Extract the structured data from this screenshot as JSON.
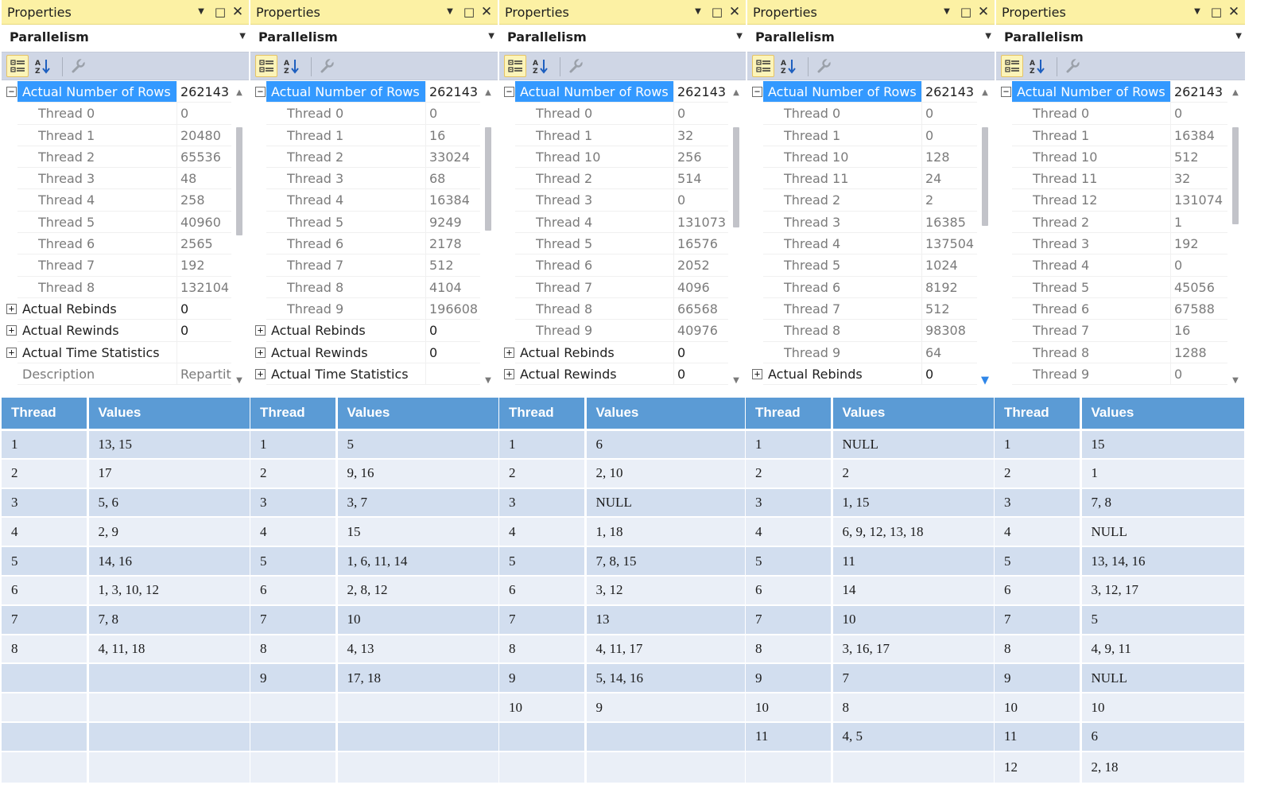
{
  "panels": [
    {
      "title": "Properties",
      "object": "Parallelism",
      "rows": [
        {
          "name": "Actual Number of Rows",
          "value": "262143",
          "kind": "selected",
          "expander": "minus"
        },
        {
          "name": "Thread 0",
          "value": "0",
          "kind": "child"
        },
        {
          "name": "Thread 1",
          "value": "20480",
          "kind": "child"
        },
        {
          "name": "Thread 2",
          "value": "65536",
          "kind": "child"
        },
        {
          "name": "Thread 3",
          "value": "48",
          "kind": "child"
        },
        {
          "name": "Thread 4",
          "value": "258",
          "kind": "child"
        },
        {
          "name": "Thread 5",
          "value": "40960",
          "kind": "child"
        },
        {
          "name": "Thread 6",
          "value": "2565",
          "kind": "child"
        },
        {
          "name": "Thread 7",
          "value": "192",
          "kind": "child"
        },
        {
          "name": "Thread 8",
          "value": "132104",
          "kind": "child"
        },
        {
          "name": "Actual Rebinds",
          "value": "0",
          "kind": "top",
          "expander": "plus"
        },
        {
          "name": "Actual Rewinds",
          "value": "0",
          "kind": "top",
          "expander": "plus"
        },
        {
          "name": "Actual Time Statistics",
          "value": "",
          "kind": "top",
          "expander": "plus"
        },
        {
          "name": "Description",
          "value": "Repartiti",
          "kind": "muted"
        }
      ]
    },
    {
      "title": "Properties",
      "object": "Parallelism",
      "rows": [
        {
          "name": "Actual Number of Rows",
          "value": "262143",
          "kind": "selected",
          "expander": "minus"
        },
        {
          "name": "Thread 0",
          "value": "0",
          "kind": "child"
        },
        {
          "name": "Thread 1",
          "value": "16",
          "kind": "child"
        },
        {
          "name": "Thread 2",
          "value": "33024",
          "kind": "child"
        },
        {
          "name": "Thread 3",
          "value": "68",
          "kind": "child"
        },
        {
          "name": "Thread 4",
          "value": "16384",
          "kind": "child"
        },
        {
          "name": "Thread 5",
          "value": "9249",
          "kind": "child"
        },
        {
          "name": "Thread 6",
          "value": "2178",
          "kind": "child"
        },
        {
          "name": "Thread 7",
          "value": "512",
          "kind": "child"
        },
        {
          "name": "Thread 8",
          "value": "4104",
          "kind": "child"
        },
        {
          "name": "Thread 9",
          "value": "196608",
          "kind": "child"
        },
        {
          "name": "Actual Rebinds",
          "value": "0",
          "kind": "top",
          "expander": "plus"
        },
        {
          "name": "Actual Rewinds",
          "value": "0",
          "kind": "top",
          "expander": "plus"
        },
        {
          "name": "Actual Time Statistics",
          "value": "",
          "kind": "top",
          "expander": "plus"
        }
      ]
    },
    {
      "title": "Properties",
      "object": "Parallelism",
      "rows": [
        {
          "name": "Actual Number of Rows",
          "value": "262143",
          "kind": "selected",
          "expander": "minus"
        },
        {
          "name": "Thread 0",
          "value": "0",
          "kind": "child"
        },
        {
          "name": "Thread 1",
          "value": "32",
          "kind": "child"
        },
        {
          "name": "Thread 10",
          "value": "256",
          "kind": "child"
        },
        {
          "name": "Thread 2",
          "value": "514",
          "kind": "child"
        },
        {
          "name": "Thread 3",
          "value": "0",
          "kind": "child"
        },
        {
          "name": "Thread 4",
          "value": "131073",
          "kind": "child"
        },
        {
          "name": "Thread 5",
          "value": "16576",
          "kind": "child"
        },
        {
          "name": "Thread 6",
          "value": "2052",
          "kind": "child"
        },
        {
          "name": "Thread 7",
          "value": "4096",
          "kind": "child"
        },
        {
          "name": "Thread 8",
          "value": "66568",
          "kind": "child"
        },
        {
          "name": "Thread 9",
          "value": "40976",
          "kind": "child"
        },
        {
          "name": "Actual Rebinds",
          "value": "0",
          "kind": "top",
          "expander": "plus"
        },
        {
          "name": "Actual Rewinds",
          "value": "0",
          "kind": "top",
          "expander": "plus"
        }
      ]
    },
    {
      "title": "Properties",
      "object": "Parallelism",
      "rows": [
        {
          "name": "Actual Number of Rows",
          "value": "262143",
          "kind": "selected",
          "expander": "minus"
        },
        {
          "name": "Thread 0",
          "value": "0",
          "kind": "child"
        },
        {
          "name": "Thread 1",
          "value": "0",
          "kind": "child"
        },
        {
          "name": "Thread 10",
          "value": "128",
          "kind": "child"
        },
        {
          "name": "Thread 11",
          "value": "24",
          "kind": "child"
        },
        {
          "name": "Thread 2",
          "value": "2",
          "kind": "child"
        },
        {
          "name": "Thread 3",
          "value": "16385",
          "kind": "child"
        },
        {
          "name": "Thread 4",
          "value": "137504",
          "kind": "child"
        },
        {
          "name": "Thread 5",
          "value": "1024",
          "kind": "child"
        },
        {
          "name": "Thread 6",
          "value": "8192",
          "kind": "child"
        },
        {
          "name": "Thread 7",
          "value": "512",
          "kind": "child"
        },
        {
          "name": "Thread 8",
          "value": "98308",
          "kind": "child"
        },
        {
          "name": "Thread 9",
          "value": "64",
          "kind": "child"
        },
        {
          "name": "Actual Rebinds",
          "value": "0",
          "kind": "top",
          "expander": "plus"
        }
      ]
    },
    {
      "title": "Properties",
      "object": "Parallelism",
      "rows": [
        {
          "name": "Actual Number of Rows",
          "value": "262143",
          "kind": "selected",
          "expander": "minus"
        },
        {
          "name": "Thread 0",
          "value": "0",
          "kind": "child"
        },
        {
          "name": "Thread 1",
          "value": "16384",
          "kind": "child"
        },
        {
          "name": "Thread 10",
          "value": "512",
          "kind": "child"
        },
        {
          "name": "Thread 11",
          "value": "32",
          "kind": "child"
        },
        {
          "name": "Thread 12",
          "value": "131074",
          "kind": "child"
        },
        {
          "name": "Thread 2",
          "value": "1",
          "kind": "child"
        },
        {
          "name": "Thread 3",
          "value": "192",
          "kind": "child"
        },
        {
          "name": "Thread 4",
          "value": "0",
          "kind": "child"
        },
        {
          "name": "Thread 5",
          "value": "45056",
          "kind": "child"
        },
        {
          "name": "Thread 6",
          "value": "67588",
          "kind": "child"
        },
        {
          "name": "Thread 7",
          "value": "16",
          "kind": "child"
        },
        {
          "name": "Thread 8",
          "value": "1288",
          "kind": "child"
        },
        {
          "name": "Thread 9",
          "value": "0",
          "kind": "child"
        }
      ]
    }
  ],
  "tables": [
    {
      "headers": [
        "Thread",
        "Values"
      ],
      "rows": [
        [
          "1",
          "13, 15"
        ],
        [
          "2",
          "17"
        ],
        [
          "3",
          "5, 6"
        ],
        [
          "4",
          "2, 9"
        ],
        [
          "5",
          "14, 16"
        ],
        [
          "6",
          "1, 3, 10, 12"
        ],
        [
          "7",
          "7, 8"
        ],
        [
          "8",
          "4, 11, 18"
        ],
        [
          "",
          ""
        ],
        [
          "",
          ""
        ],
        [
          "",
          ""
        ],
        [
          "",
          ""
        ]
      ]
    },
    {
      "headers": [
        "Thread",
        "Values"
      ],
      "rows": [
        [
          "1",
          "5"
        ],
        [
          "2",
          "9, 16"
        ],
        [
          "3",
          "3, 7"
        ],
        [
          "4",
          "15"
        ],
        [
          "5",
          "1, 6, 11, 14"
        ],
        [
          "6",
          "2, 8, 12"
        ],
        [
          "7",
          "10"
        ],
        [
          "8",
          "4, 13"
        ],
        [
          "9",
          "17, 18"
        ],
        [
          "",
          ""
        ],
        [
          "",
          ""
        ],
        [
          "",
          ""
        ]
      ]
    },
    {
      "headers": [
        "Thread",
        "Values"
      ],
      "rows": [
        [
          "1",
          "6"
        ],
        [
          "2",
          "2, 10"
        ],
        [
          "3",
          "NULL"
        ],
        [
          "4",
          "1, 18"
        ],
        [
          "5",
          "7, 8, 15"
        ],
        [
          "6",
          "3, 12"
        ],
        [
          "7",
          "13"
        ],
        [
          "8",
          "4, 11, 17"
        ],
        [
          "9",
          "5, 14, 16"
        ],
        [
          "10",
          "9"
        ],
        [
          "",
          ""
        ],
        [
          "",
          ""
        ]
      ]
    },
    {
      "headers": [
        "Thread",
        "Values"
      ],
      "rows": [
        [
          "1",
          "NULL"
        ],
        [
          "2",
          "2"
        ],
        [
          "3",
          "1, 15"
        ],
        [
          "4",
          "6, 9, 12,  13, 18"
        ],
        [
          "5",
          "11"
        ],
        [
          "6",
          "14"
        ],
        [
          "7",
          "10"
        ],
        [
          "8",
          "3, 16, 17"
        ],
        [
          "9",
          "7"
        ],
        [
          "10",
          "8"
        ],
        [
          "11",
          "4, 5"
        ],
        [
          "",
          ""
        ]
      ]
    },
    {
      "headers": [
        "Thread",
        "Values"
      ],
      "rows": [
        [
          "1",
          "15"
        ],
        [
          "2",
          "1"
        ],
        [
          "3",
          "7, 8"
        ],
        [
          "4",
          "NULL"
        ],
        [
          "5",
          "13, 14, 16"
        ],
        [
          "6",
          "3, 12, 17"
        ],
        [
          "7",
          "5"
        ],
        [
          "8",
          "4, 9, 11"
        ],
        [
          "9",
          "NULL"
        ],
        [
          "10",
          "10"
        ],
        [
          "11",
          "6"
        ],
        [
          "12",
          "2, 18"
        ]
      ]
    }
  ],
  "icons": {
    "dropdown": "chevron-down-icon",
    "maximize": "maximize-icon",
    "close": "close-icon",
    "categorized": "categorized-icon",
    "alphabetical": "alphabetical-sort-icon",
    "property_pages": "wrench-icon",
    "expand": "plus-box-icon",
    "collapse": "minus-box-icon"
  },
  "colors": {
    "title_bar": "#fcf1a4",
    "selection": "#3399ff",
    "table_header": "#5b9bd5",
    "table_row_odd": "#d2deef",
    "table_row_even": "#eaeff7"
  }
}
